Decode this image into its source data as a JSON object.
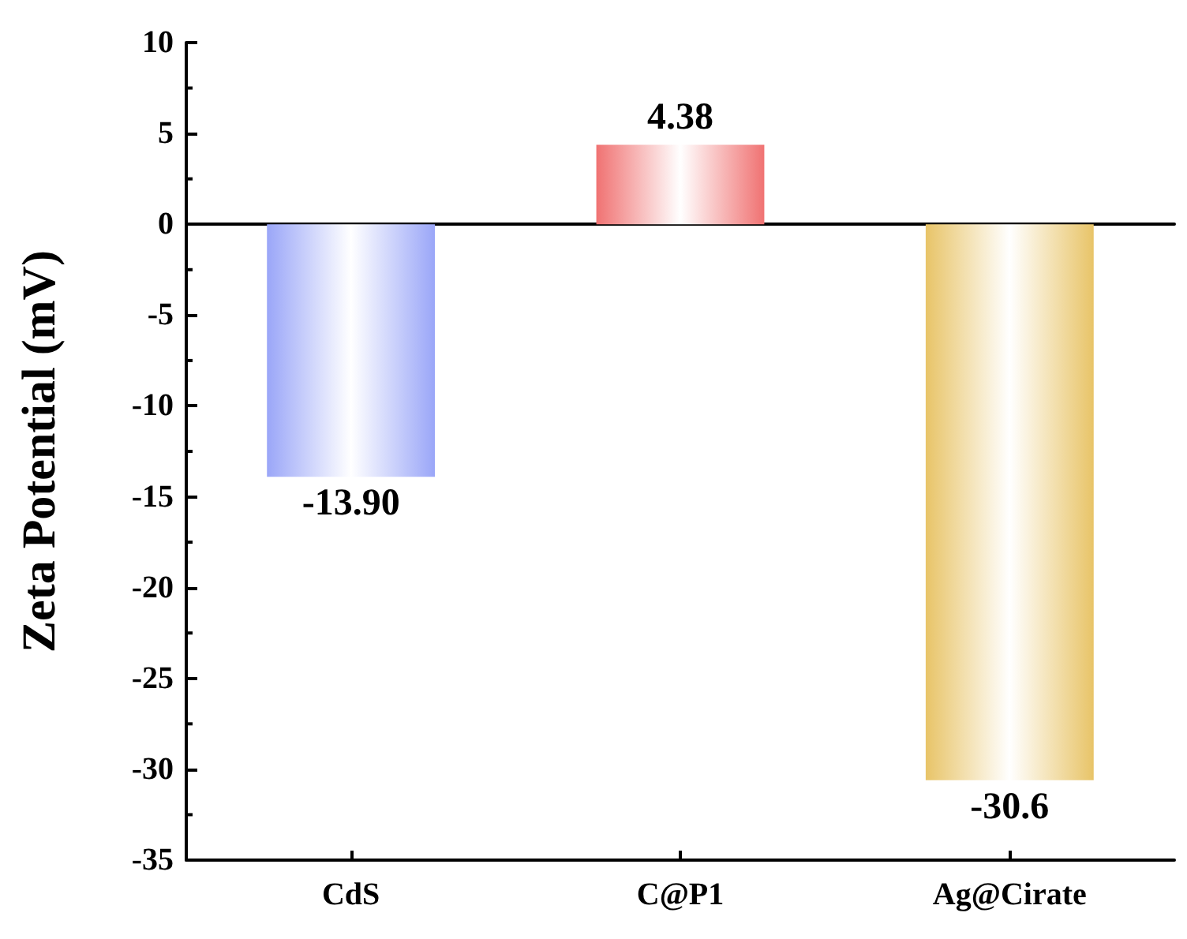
{
  "chart_data": {
    "type": "bar",
    "ylabel": "Zeta Potential (mV)",
    "categories": [
      "CdS",
      "C@P1",
      "Ag@Cirate"
    ],
    "values": [
      -13.9,
      4.38,
      -30.6
    ],
    "value_labels": [
      "-13.90",
      "4.38",
      "-30.6"
    ],
    "colors": [
      "#9aa6f8",
      "#f07272",
      "#e8c468"
    ],
    "ylim": [
      -35,
      10
    ],
    "yticks": [
      -35,
      -30,
      -25,
      -20,
      -15,
      -10,
      -5,
      0,
      5,
      10
    ]
  }
}
